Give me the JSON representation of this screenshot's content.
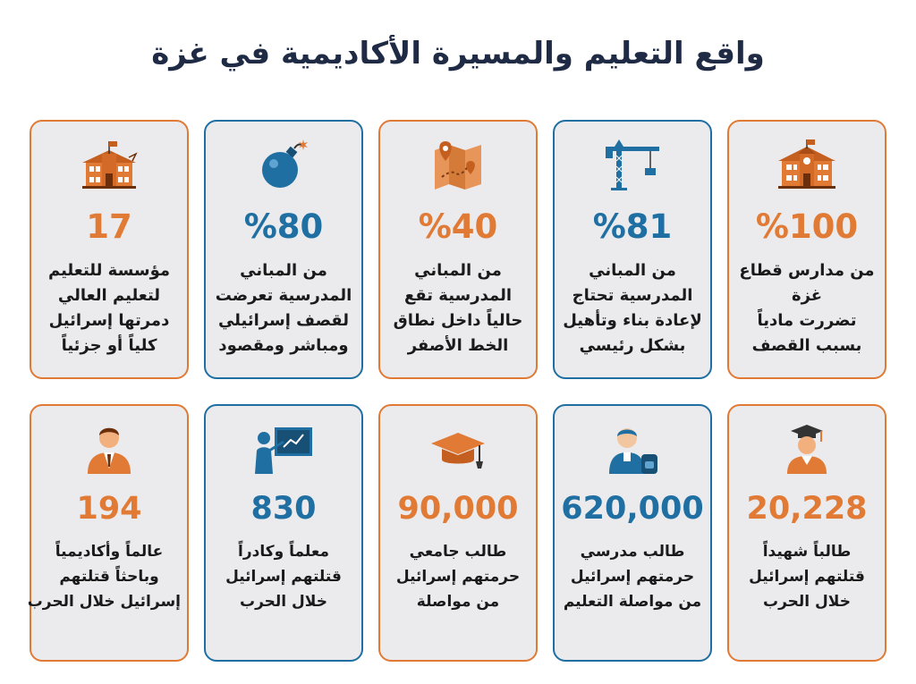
{
  "title": "واقع التعليم والمسيرة الأكاديمية في غزة",
  "colors": {
    "orange": "#e07a35",
    "blue": "#1f6fa3",
    "dark": "#1f2a44",
    "card_bg": "#ebebed"
  },
  "row1": [
    {
      "icon": "school-building-icon",
      "value": "%100",
      "lines": [
        "من مدارس قطاع",
        "غزة",
        "تضررت مادياً",
        "بسبب القصف"
      ]
    },
    {
      "icon": "construction-crane-icon",
      "value": "%81",
      "lines": [
        "من المباني",
        "المدرسية تحتاج",
        "لإعادة بناء وتأهيل",
        "بشكل رئيسي"
      ]
    },
    {
      "icon": "map-pin-icon",
      "value": "%40",
      "lines": [
        "من المباني",
        "المدرسية تقع",
        "حالياً داخل نطاق",
        "الخط الأصفر"
      ]
    },
    {
      "icon": "bomb-icon",
      "value": "%80",
      "lines": [
        "من المباني",
        "المدرسية تعرضت",
        "لقصف إسرائيلي",
        "ومباشر ومقصود"
      ]
    },
    {
      "icon": "university-building-icon",
      "value": "17",
      "lines": [
        "مؤسسة للتعليم",
        "لتعليم العالي",
        "دمرتها إسرائيل",
        "كلياً أو جزئياً"
      ]
    }
  ],
  "row2": [
    {
      "icon": "graduate-student-icon",
      "value": "20,228",
      "lines": [
        "طالباً شهيداً",
        "قتلتهم إسرائيل",
        "خلال الحرب"
      ]
    },
    {
      "icon": "schoolboy-backpack-icon",
      "value": "620,000",
      "lines": [
        "طالب مدرسي",
        "حرمتهم إسرائيل",
        "من مواصلة التعليم"
      ]
    },
    {
      "icon": "graduation-cap-icon",
      "value": "90,000",
      "lines": [
        "طالب جامعي",
        "حرمتهم إسرائيل",
        "من مواصلة"
      ]
    },
    {
      "icon": "teacher-board-icon",
      "value": "830",
      "lines": [
        "معلماً وكادراً",
        "قتلتهم إسرائيل",
        "خلال الحرب"
      ]
    },
    {
      "icon": "academic-person-icon",
      "value": "194",
      "lines": [
        "عالماً وأكاديمياً",
        "وباحثاً قتلتهم",
        "إسرائيل خلال الحرب"
      ]
    }
  ]
}
